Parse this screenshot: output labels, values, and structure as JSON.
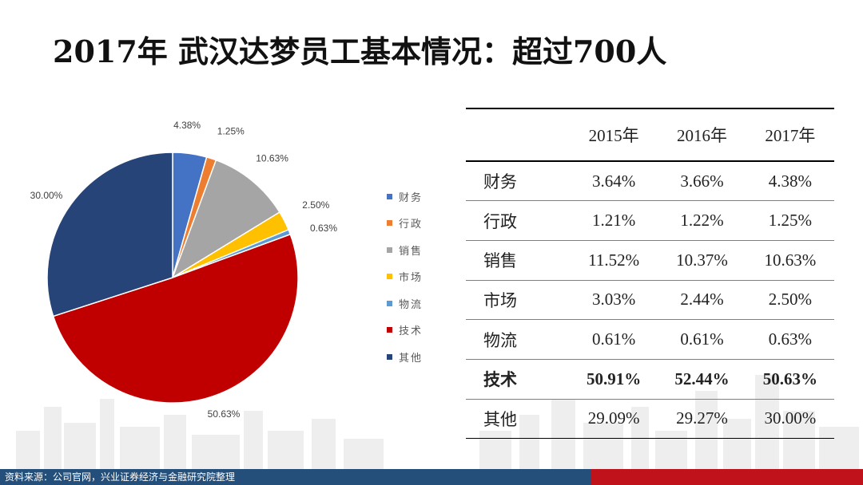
{
  "title": "2017年 武汉达梦员工基本情况：超过700人",
  "source": "资料来源：公司官网，兴业证券经济与金融研究院整理",
  "chart_data": [
    {
      "type": "pie",
      "title": "",
      "categories": [
        "财务",
        "行政",
        "销售",
        "市场",
        "物流",
        "技术",
        "其他"
      ],
      "values": [
        4.38,
        1.25,
        10.63,
        2.5,
        0.63,
        50.63,
        30.0
      ],
      "data_labels": [
        "4.38%",
        "1.25%",
        "10.63%",
        "2.50%",
        "0.63%",
        "50.63%",
        "30.00%"
      ],
      "colors": [
        "#4472c4",
        "#ed7d31",
        "#a5a5a5",
        "#ffc000",
        "#5b9bd5",
        "#c00000",
        "#264478"
      ],
      "legend_position": "right"
    },
    {
      "type": "table",
      "columns": [
        "",
        "2015年",
        "2016年",
        "2017年"
      ],
      "rows": [
        {
          "label": "财务",
          "values": [
            "3.64%",
            "3.66%",
            "4.38%"
          ],
          "bold": false
        },
        {
          "label": "行政",
          "values": [
            "1.21%",
            "1.22%",
            "1.25%"
          ],
          "bold": false
        },
        {
          "label": "销售",
          "values": [
            "11.52%",
            "10.37%",
            "10.63%"
          ],
          "bold": false
        },
        {
          "label": "市场",
          "values": [
            "3.03%",
            "2.44%",
            "2.50%"
          ],
          "bold": false
        },
        {
          "label": "物流",
          "values": [
            "0.61%",
            "0.61%",
            "0.63%"
          ],
          "bold": false
        },
        {
          "label": "技术",
          "values": [
            "50.91%",
            "52.44%",
            "50.63%"
          ],
          "bold": true
        },
        {
          "label": "其他",
          "values": [
            "29.09%",
            "29.27%",
            "30.00%"
          ],
          "bold": false
        }
      ]
    }
  ]
}
